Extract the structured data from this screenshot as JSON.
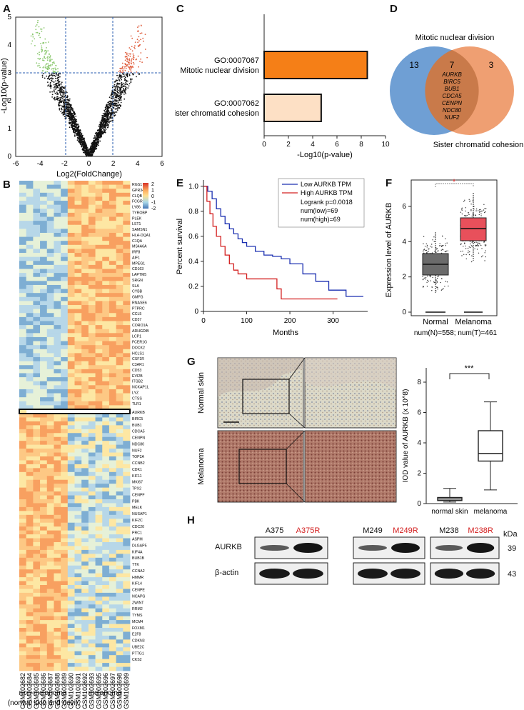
{
  "panels": {
    "a": {
      "letter": "A",
      "xlabel": "Log2(FoldChange)",
      "ylabel": "-Log10(p-value)",
      "xticks": [
        "-6",
        "-4",
        "-2",
        "0",
        "2",
        "4",
        "6"
      ],
      "yticks": [
        "0",
        "1",
        "2",
        "3",
        "4",
        "5"
      ]
    },
    "b": {
      "letter": "B",
      "scale": [
        "2",
        "1",
        "0",
        "-1",
        "-2"
      ],
      "row_labels_top": [
        "RGS1",
        "GPR34",
        "CLQB",
        "FCGR3A",
        "LY86",
        "TYROBP",
        "PLEK",
        "LST1",
        "SAMSN1",
        "HLA-DQA1",
        "C1QA",
        "MS4A6A",
        "IRF8",
        "AIF1",
        "MPEG1",
        "CD163",
        "LAPTM5",
        "SRGN",
        "SLA",
        "CYBB",
        "GMFG",
        "RNASE6",
        "PTPRC",
        "CCL5",
        "CD37",
        "CORO1A",
        "ARHGDIB",
        "LCP1",
        "FCER1G",
        "DOCK2",
        "HCLS1",
        "CSF1R",
        "C3AR1",
        "CD53",
        "EVI2B",
        "ITGB2",
        "NCKAP1L",
        "LYZ",
        "CTSS",
        "TLR1"
      ],
      "row_labels_bottom": [
        "AURKB",
        "BIRC5",
        "BUB1",
        "CDCA5",
        "CENPN",
        "NDC80",
        "NUF2",
        "TOP2A",
        "CCNB2",
        "CDK1",
        "KIF11",
        "MKI67",
        "TPX2",
        "CENPF",
        "PBK",
        "MELK",
        "NUSAP1",
        "KIF2C",
        "CDC20",
        "PRC1",
        "ASPM",
        "DLGAP5",
        "KIF4A",
        "BUB1B",
        "TTK",
        "CCNA2",
        "HMMR",
        "KIF14",
        "CENPE",
        "NCAPG",
        "ZWINT",
        "RRM2",
        "TYMS",
        "MCM4",
        "FOXM1",
        "E2F8",
        "CDKN3",
        "UBE2C",
        "PTTG1",
        "CKS2"
      ],
      "column_labels": [
        "GSM102682",
        "GSM102684",
        "GSM102685",
        "GSM102686",
        "GSM102687",
        "GSM102688",
        "GSM102689",
        "GSM102690",
        "GSM102691",
        "GSM102692",
        "GSM102693",
        "GSM102695",
        "GSM102696",
        "GSM102697",
        "GSM102698",
        "GSM102699"
      ],
      "group_left": "non-melanoma",
      "group_left_sub": "(normal skin and nevi)",
      "group_right": "melanoma"
    },
    "c": {
      "letter": "C",
      "xlabel": "-Log10(p-value)",
      "xticks": [
        "0",
        "2",
        "4",
        "6",
        "8",
        "10"
      ],
      "bars": [
        {
          "id": "GO:0007067",
          "term": "Mitotic nuclear division",
          "value": 8.5,
          "color": "#f57f17"
        },
        {
          "id": "GO:0007062",
          "term": "Sister chromatid cohesion",
          "value": 4.7,
          "color": "#fde0c5"
        }
      ]
    },
    "d": {
      "letter": "D",
      "title": "Mitotic nuclear division",
      "bottom": "Sister chromatid cohesion",
      "left_count": "13",
      "mid_count": "7",
      "right_count": "3",
      "genes": [
        "AURKB",
        "BIRC5",
        "BUB1",
        "CDCA5",
        "CENPN",
        "NDC80",
        "NUF2"
      ]
    },
    "e": {
      "letter": "E",
      "ylabel": "Percent survival",
      "xlabel": "Months",
      "xticks": [
        "0",
        "100",
        "200",
        "300"
      ],
      "yticks": [
        "0",
        "0.2",
        "0.4",
        "0.6",
        "0.8",
        "1.0"
      ],
      "legend_low": "Low AURKB TPM",
      "legend_high": "High AURKB TPM",
      "logrank": "Logrank p=0.0018",
      "num_low": "num(low)=69",
      "num_high": "num(high)=69"
    },
    "f": {
      "letter": "F",
      "ylabel": "Expression level of AURKB",
      "yticks": [
        "0",
        "2",
        "4",
        "6"
      ],
      "cat1": "Normal",
      "cat2": "Melanoma",
      "nums": "num(N)=558; num(T)=461",
      "star": "*"
    },
    "g": {
      "letter": "G",
      "row1": "Normal skin",
      "row2": "Melanoma",
      "ylabel": "IOD value of AURKB (x 10^8)",
      "yticks": [
        "0",
        "2",
        "4",
        "6",
        "8"
      ],
      "cat1": "normal skin",
      "cat2": "melanoma",
      "sig": "***"
    },
    "h": {
      "letter": "H",
      "kda": "kDa",
      "row1": "AURKB",
      "row2": "β-actin",
      "mw1": "39",
      "mw2": "43",
      "lanes": [
        {
          "name": "A375",
          "red": false
        },
        {
          "name": "A375R",
          "red": true
        },
        {
          "name": "M249",
          "red": false
        },
        {
          "name": "M249R",
          "red": true
        },
        {
          "name": "M238",
          "red": false
        },
        {
          "name": "M238R",
          "red": true
        }
      ]
    }
  },
  "chart_data": [
    {
      "type": "bar",
      "title": "",
      "categories": [
        "GO:0007067 Mitotic nuclear division",
        "GO:0007062 Sister chromatid cohesion"
      ],
      "values": [
        8.5,
        4.7
      ],
      "xlabel": "-Log10(p-value)",
      "xlim": [
        0,
        10
      ]
    },
    {
      "type": "line",
      "xlabel": "Months",
      "ylabel": "Percent survival",
      "xlim": [
        0,
        380
      ],
      "ylim": [
        0,
        1.05
      ],
      "series": [
        {
          "name": "Low AURKB TPM",
          "color": "#1a2fb0",
          "x": [
            0,
            10,
            20,
            30,
            40,
            50,
            60,
            70,
            80,
            90,
            100,
            120,
            140,
            160,
            180,
            200,
            230,
            260,
            290,
            330,
            370
          ],
          "y": [
            1.0,
            0.96,
            0.9,
            0.82,
            0.76,
            0.7,
            0.66,
            0.62,
            0.58,
            0.55,
            0.52,
            0.48,
            0.45,
            0.44,
            0.42,
            0.38,
            0.3,
            0.24,
            0.17,
            0.12,
            0.12
          ]
        },
        {
          "name": "High AURKB TPM",
          "color": "#d32020",
          "x": [
            0,
            8,
            15,
            22,
            30,
            40,
            50,
            60,
            70,
            80,
            100,
            130,
            170,
            180,
            210,
            250,
            310
          ],
          "y": [
            1.0,
            0.88,
            0.78,
            0.68,
            0.6,
            0.52,
            0.45,
            0.38,
            0.33,
            0.3,
            0.26,
            0.26,
            0.18,
            0.1,
            0.1,
            0.1,
            0.1
          ]
        }
      ]
    },
    {
      "type": "bar",
      "title": "",
      "categories": [
        "normal skin",
        "melanoma"
      ],
      "ylabel": "IOD value of AURKB (x 10^8)",
      "ylim": [
        0,
        8
      ],
      "box": [
        {
          "min": 0.1,
          "q1": 0.2,
          "median": 0.3,
          "q3": 0.4,
          "max": 1.0
        },
        {
          "min": 0.9,
          "q1": 2.8,
          "median": 3.3,
          "q3": 4.8,
          "max": 6.7
        }
      ]
    }
  ]
}
